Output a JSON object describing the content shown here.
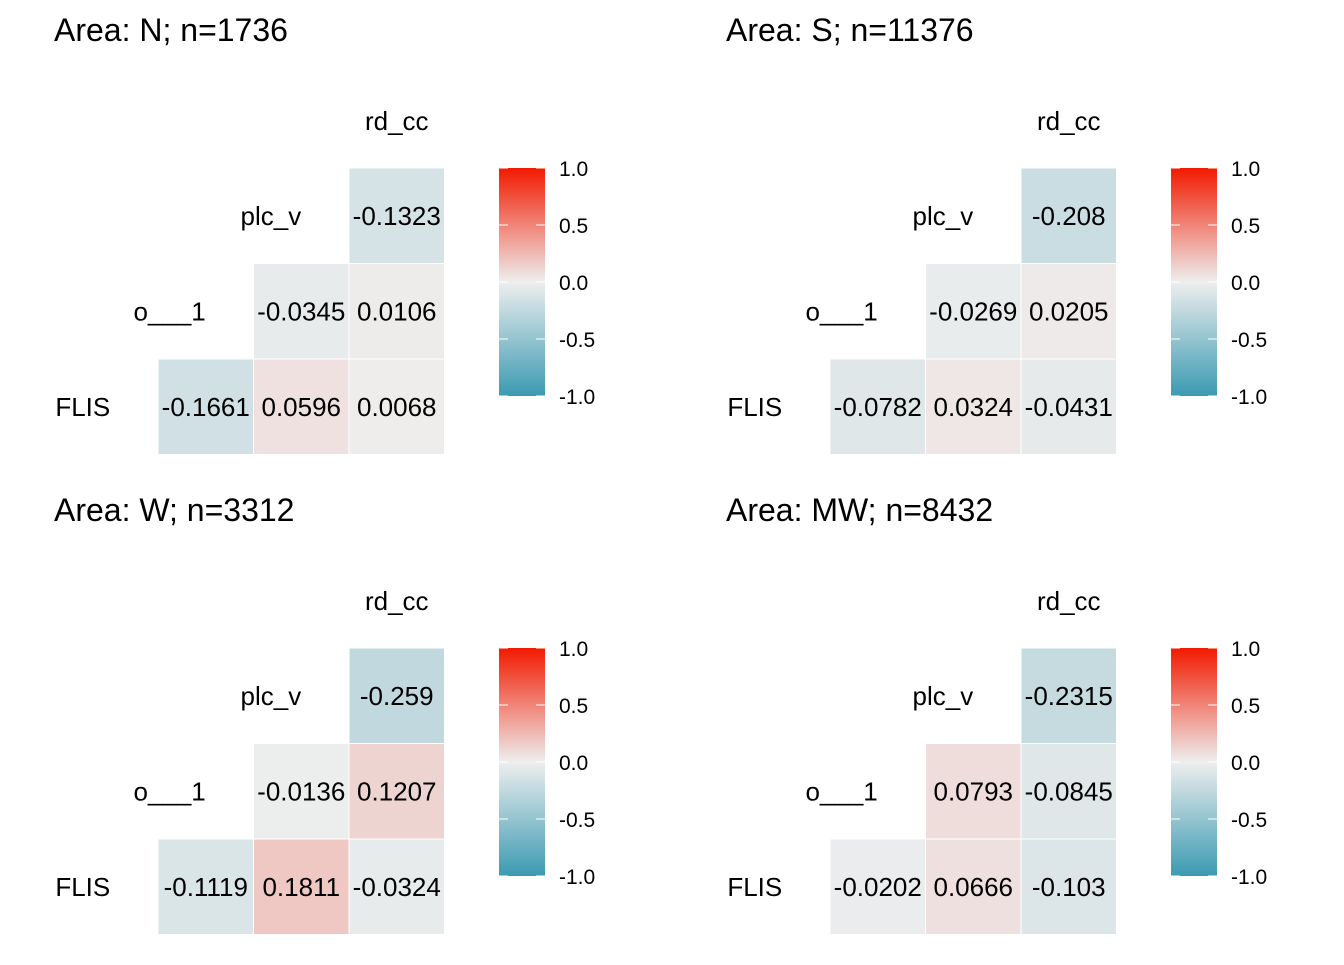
{
  "chart_data": [
    {
      "type": "heatmap",
      "title": "Area: N; n=1736",
      "variables": [
        "FLIS",
        "o___1",
        "plc_v",
        "rd_cc"
      ],
      "rows": [
        {
          "label": "plc_v",
          "cells": [
            {
              "col": "rd_cc",
              "value": -0.1323,
              "label": "-0.1323"
            }
          ]
        },
        {
          "label": "o___1",
          "cells": [
            {
              "col": "plc_v",
              "value": -0.0345,
              "label": "-0.0345"
            },
            {
              "col": "rd_cc",
              "value": 0.0106,
              "label": "0.0106"
            }
          ]
        },
        {
          "label": "FLIS",
          "cells": [
            {
              "col": "o___1",
              "value": -0.1661,
              "label": "-0.1661"
            },
            {
              "col": "plc_v",
              "value": 0.0596,
              "label": "0.0596"
            },
            {
              "col": "rd_cc",
              "value": 0.0068,
              "label": "0.0068"
            }
          ]
        }
      ],
      "top_label": "rd_cc"
    },
    {
      "type": "heatmap",
      "title": "Area: S; n=11376",
      "variables": [
        "FLIS",
        "o___1",
        "plc_v",
        "rd_cc"
      ],
      "rows": [
        {
          "label": "plc_v",
          "cells": [
            {
              "col": "rd_cc",
              "value": -0.208,
              "label": "-0.208"
            }
          ]
        },
        {
          "label": "o___1",
          "cells": [
            {
              "col": "plc_v",
              "value": -0.0269,
              "label": "-0.0269"
            },
            {
              "col": "rd_cc",
              "value": 0.0205,
              "label": "0.0205"
            }
          ]
        },
        {
          "label": "FLIS",
          "cells": [
            {
              "col": "o___1",
              "value": -0.0782,
              "label": "-0.0782"
            },
            {
              "col": "plc_v",
              "value": 0.0324,
              "label": "0.0324"
            },
            {
              "col": "rd_cc",
              "value": -0.0431,
              "label": "-0.0431"
            }
          ]
        }
      ],
      "top_label": "rd_cc"
    },
    {
      "type": "heatmap",
      "title": "Area: W; n=3312",
      "variables": [
        "FLIS",
        "o___1",
        "plc_v",
        "rd_cc"
      ],
      "rows": [
        {
          "label": "plc_v",
          "cells": [
            {
              "col": "rd_cc",
              "value": -0.259,
              "label": "-0.259"
            }
          ]
        },
        {
          "label": "o___1",
          "cells": [
            {
              "col": "plc_v",
              "value": -0.0136,
              "label": "-0.0136"
            },
            {
              "col": "rd_cc",
              "value": 0.1207,
              "label": "0.1207"
            }
          ]
        },
        {
          "label": "FLIS",
          "cells": [
            {
              "col": "o___1",
              "value": -0.1119,
              "label": "-0.1119"
            },
            {
              "col": "plc_v",
              "value": 0.1811,
              "label": "0.1811"
            },
            {
              "col": "rd_cc",
              "value": -0.0324,
              "label": "-0.0324"
            }
          ]
        }
      ],
      "top_label": "rd_cc"
    },
    {
      "type": "heatmap",
      "title": "Area: MW; n=8432",
      "variables": [
        "FLIS",
        "o___1",
        "plc_v",
        "rd_cc"
      ],
      "rows": [
        {
          "label": "plc_v",
          "cells": [
            {
              "col": "rd_cc",
              "value": -0.2315,
              "label": "-0.2315"
            }
          ]
        },
        {
          "label": "o___1",
          "cells": [
            {
              "col": "plc_v",
              "value": 0.0793,
              "label": "0.0793"
            },
            {
              "col": "rd_cc",
              "value": -0.0845,
              "label": "-0.0845"
            }
          ]
        },
        {
          "label": "FLIS",
          "cells": [
            {
              "col": "o___1",
              "value": -0.0202,
              "label": "-0.0202"
            },
            {
              "col": "plc_v",
              "value": 0.0666,
              "label": "0.0666"
            },
            {
              "col": "rd_cc",
              "value": -0.103,
              "label": "-0.103"
            }
          ]
        }
      ],
      "top_label": "rd_cc"
    }
  ],
  "legend": {
    "ticks": [
      "1.0",
      "0.5",
      "0.0",
      "-0.5",
      "-1.0"
    ],
    "tick_values": [
      1,
      0.5,
      0,
      -0.5,
      -1
    ],
    "range": [
      -1,
      1
    ],
    "placement": "right",
    "colors": {
      "low": "#3B9AB2",
      "mid": "#EEEEEE",
      "high": "#F21A00"
    }
  }
}
